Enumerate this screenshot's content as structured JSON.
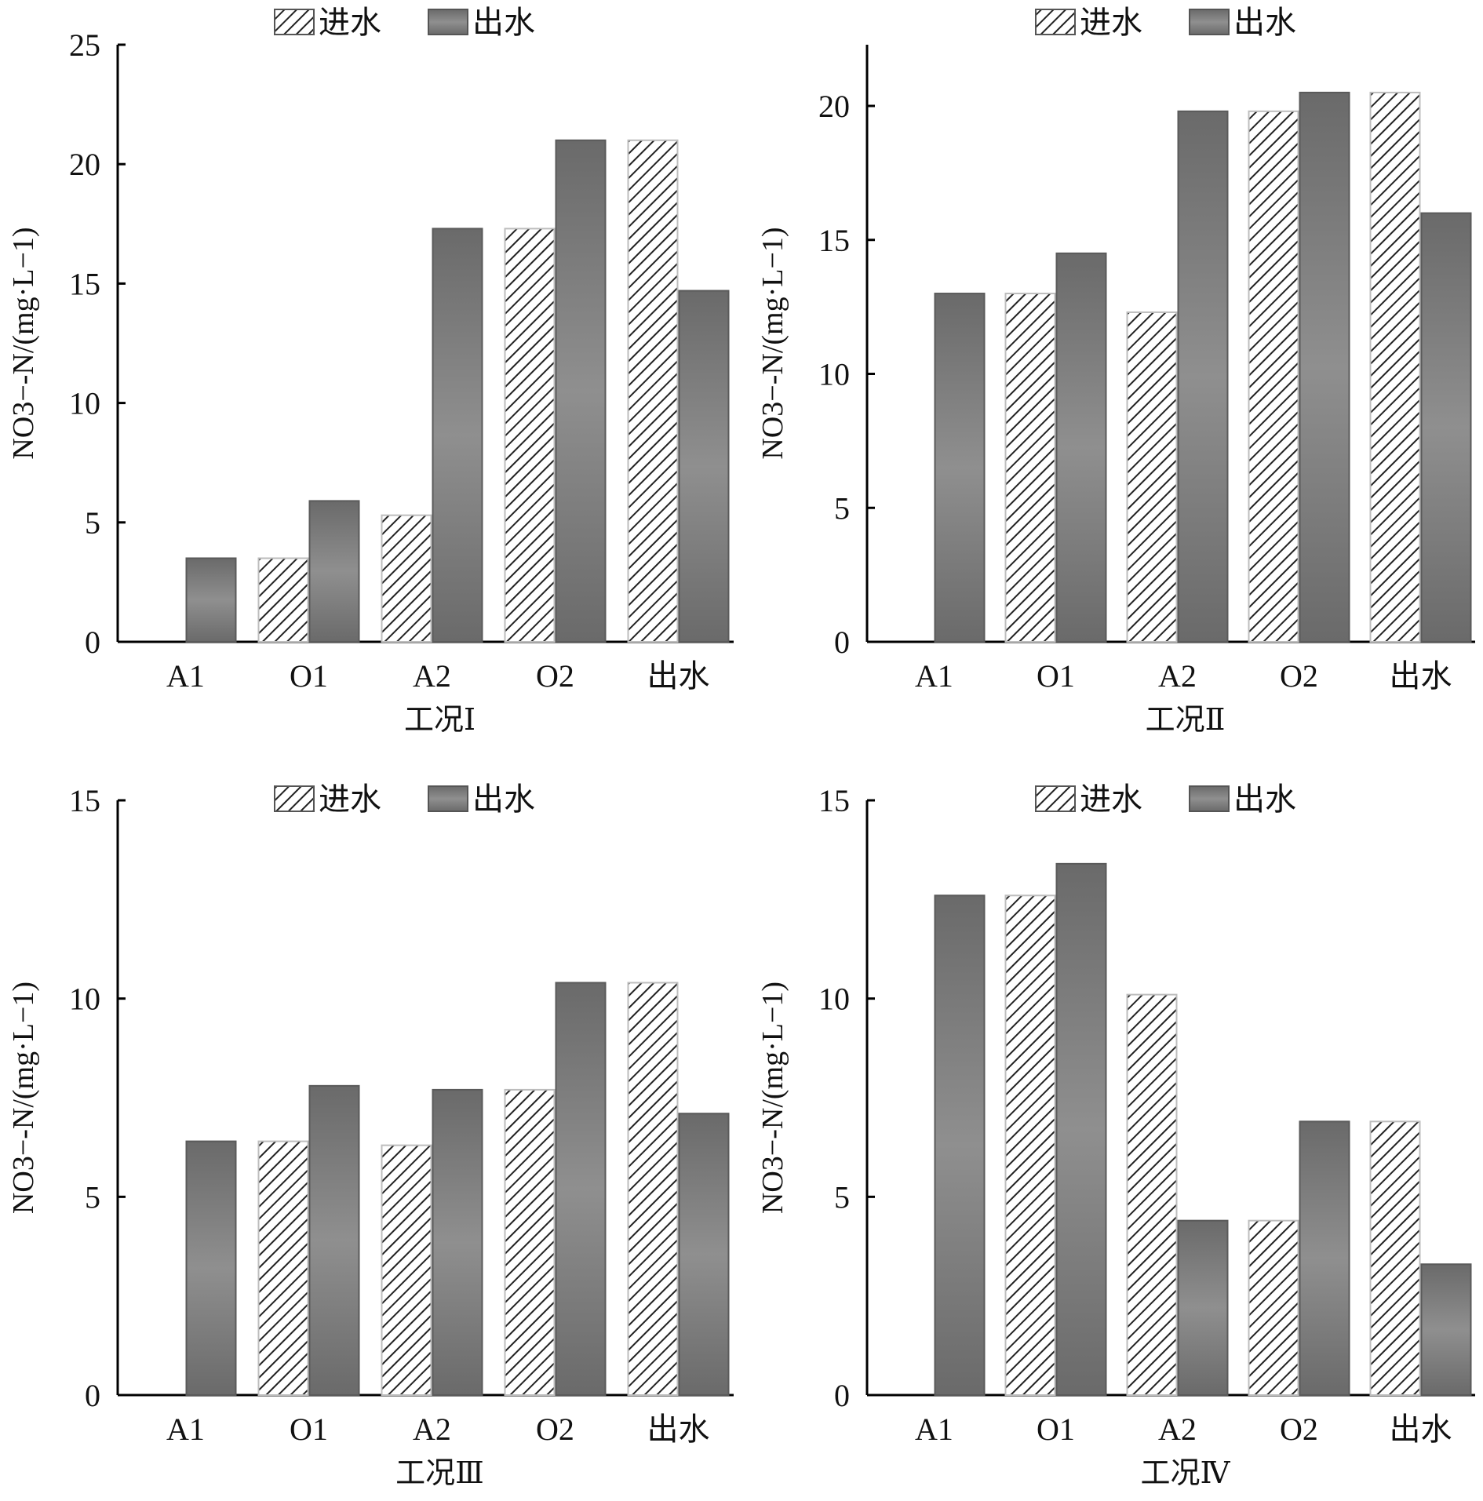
{
  "colors": {
    "effluent_fill": "#7a7a7a",
    "influent_stripe": "#222222",
    "axis": "#000000"
  },
  "chart_data": [
    {
      "type": "bar",
      "title": "",
      "xlabel": "工况Ⅰ",
      "ylabel": "NO3−-N/(mg·L−1)",
      "categories": [
        "A1",
        "O1",
        "A2",
        "O2",
        "出水"
      ],
      "series": [
        {
          "name": "进水",
          "pattern": "hatched",
          "values": [
            null,
            3.5,
            5.3,
            17.3,
            21.0
          ]
        },
        {
          "name": "出水",
          "pattern": "solid",
          "values": [
            3.5,
            5.9,
            17.3,
            21.0,
            14.7
          ]
        }
      ],
      "ylim": [
        0,
        25
      ],
      "yticks": [
        0,
        5,
        10,
        15,
        20,
        25
      ],
      "legend": "top"
    },
    {
      "type": "bar",
      "title": "",
      "xlabel": "工况Ⅱ",
      "ylabel": "NO3−-N/(mg·L−1)",
      "categories": [
        "A1",
        "O1",
        "A2",
        "O2",
        "出水"
      ],
      "series": [
        {
          "name": "进水",
          "pattern": "hatched",
          "values": [
            null,
            13.0,
            12.3,
            19.8,
            20.5
          ]
        },
        {
          "name": "出水",
          "pattern": "solid",
          "values": [
            13.0,
            14.5,
            19.8,
            20.5,
            16.0
          ]
        }
      ],
      "ylim": [
        0,
        22.5
      ],
      "yticks": [
        0,
        5,
        10,
        15,
        20
      ],
      "legend": "top"
    },
    {
      "type": "bar",
      "title": "",
      "xlabel": "工况Ⅲ",
      "ylabel": "NO3−-N/(mg·L−1)",
      "categories": [
        "A1",
        "O1",
        "A2",
        "O2",
        "出水"
      ],
      "series": [
        {
          "name": "进水",
          "pattern": "hatched",
          "values": [
            null,
            6.4,
            6.3,
            7.7,
            10.4
          ]
        },
        {
          "name": "出水",
          "pattern": "solid",
          "values": [
            6.4,
            7.8,
            7.7,
            10.4,
            7.1
          ]
        }
      ],
      "ylim": [
        0,
        15
      ],
      "yticks": [
        0,
        5,
        10,
        15
      ],
      "legend": "top"
    },
    {
      "type": "bar",
      "title": "",
      "xlabel": "工况Ⅳ",
      "ylabel": "NO3−-N/(mg·L−1)",
      "categories": [
        "A1",
        "O1",
        "A2",
        "O2",
        "出水"
      ],
      "series": [
        {
          "name": "进水",
          "pattern": "hatched",
          "values": [
            null,
            12.6,
            10.1,
            4.4,
            6.9
          ]
        },
        {
          "name": "出水",
          "pattern": "solid",
          "values": [
            12.6,
            13.4,
            4.4,
            6.9,
            3.3
          ]
        }
      ],
      "ylim": [
        0,
        15
      ],
      "yticks": [
        0,
        5,
        10,
        15
      ],
      "legend": "top"
    }
  ]
}
